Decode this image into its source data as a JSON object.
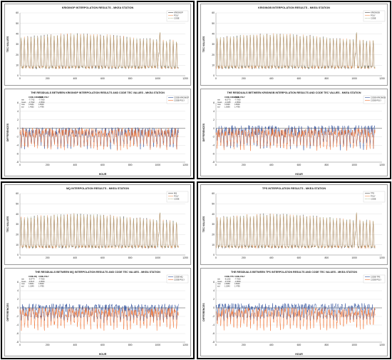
{
  "chart_data": [
    {
      "type": "line",
      "title": "KRIGINGP INTERPOLATION RESULTS - MKEA STATION",
      "xlabel": "",
      "ylabel": "TEC VALUES",
      "xlim": [
        0,
        1200
      ],
      "ylim": [
        0,
        60
      ],
      "xticks": [
        "0",
        "200",
        "400",
        "600",
        "800",
        "1000",
        "1200"
      ],
      "yticks": [
        "0",
        "10",
        "20",
        "30",
        "40",
        "50",
        "60"
      ],
      "legend_position": "top-right",
      "series": [
        {
          "name": "KRIGINGP",
          "color": "#4d4d4d",
          "dash": "solid",
          "period_hours": 24,
          "baseline": 8,
          "peak": 36,
          "noise": 3,
          "seed": 11
        },
        {
          "name": "POLY",
          "color": "#f0945a",
          "dash": "solid",
          "period_hours": 24,
          "baseline": 8,
          "peak": 36,
          "noise": 3,
          "seed": 12
        },
        {
          "name": "CODE",
          "color": "#9aaa7a",
          "dash": "dashed",
          "period_hours": 24,
          "baseline": 8,
          "peak": 36,
          "noise": 2,
          "seed": 13
        }
      ]
    },
    {
      "type": "line",
      "title": "KRIGINGB INTERPOLATION RESULTS - MKEA STATION",
      "xlabel": "",
      "ylabel": "TEC VALUES",
      "xlim": [
        0,
        1200
      ],
      "ylim": [
        0,
        60
      ],
      "xticks": [
        "0",
        "200",
        "400",
        "600",
        "800",
        "1000",
        "1200"
      ],
      "yticks": [
        "0",
        "10",
        "20",
        "30",
        "40",
        "50",
        "60"
      ],
      "legend_position": "top-right",
      "series": [
        {
          "name": "KRIGINGB",
          "color": "#4d4d4d",
          "dash": "solid",
          "period_hours": 24,
          "baseline": 8,
          "peak": 36,
          "noise": 3,
          "seed": 21
        },
        {
          "name": "POLY",
          "color": "#f0945a",
          "dash": "solid",
          "period_hours": 24,
          "baseline": 8,
          "peak": 36,
          "noise": 3,
          "seed": 22
        },
        {
          "name": "CODE",
          "color": "#9aaa7a",
          "dash": "dashed",
          "period_hours": 24,
          "baseline": 8,
          "peak": 36,
          "noise": 2,
          "seed": 23
        }
      ]
    },
    {
      "type": "line",
      "title": "THE RESIDUALS BETWEEN KRIGINGP INTERPOLATION RESULTS AND CODE TEC VALUES - MKEA STATION",
      "xlabel": "HOUR",
      "ylabel": "DIFFERENCES",
      "xlim": [
        0,
        1200
      ],
      "ylim": [
        -8,
        6
      ],
      "xticks": [
        "0",
        "200",
        "400",
        "600",
        "800",
        "1000",
        "1200"
      ],
      "yticks": [
        "-8",
        "-6",
        "-4",
        "-2",
        "0",
        "2",
        "4",
        "6"
      ],
      "legend_position": "top-right",
      "stats": {
        "header": [
          "",
          "CODE-KRIGINGP",
          "CODE-POLY"
        ],
        "rows": [
          [
            "min",
            "-7.7762",
            "-7.7000"
          ],
          [
            "mean",
            "-1.7922",
            "-1.9694"
          ],
          [
            "max",
            "3.6431",
            "4.8000"
          ],
          [
            "std",
            "1.4052",
            "1.4795"
          ]
        ]
      },
      "series": [
        {
          "name": "CODE-KRIGINGP",
          "color": "#2e4f9c",
          "dash": "solid",
          "mean": -1.79,
          "amplitude": 2.2,
          "min": -7.78,
          "max": 3.64,
          "seed": 31
        },
        {
          "name": "CODE-POLY",
          "color": "#f07030",
          "dash": "solid",
          "mean": -1.97,
          "amplitude": 2.3,
          "min": -7.7,
          "max": 4.8,
          "seed": 32
        }
      ]
    },
    {
      "type": "line",
      "title": "THE RESIDUALS BETWEEN KRIGINGB INTERPOLATION RESULTS AND CODE TEC VALUES - MKEA STATION",
      "xlabel": "HOUR",
      "ylabel": "DIFFERENCES",
      "xlim": [
        0,
        1200
      ],
      "ylim": [
        -8,
        6
      ],
      "xticks": [
        "0",
        "200",
        "400",
        "600",
        "800",
        "1000",
        "1200"
      ],
      "yticks": [
        "-8",
        "-6",
        "-4",
        "-2",
        "0",
        "2",
        "4",
        "6"
      ],
      "legend_position": "top-right",
      "stats": {
        "header": [
          "",
          "CODE-KRIGINGB",
          "CODE-POLY"
        ],
        "rows": [
          [
            "min",
            "-8.3770",
            "-7.7000"
          ],
          [
            "mean",
            "-1.4445",
            "-1.9694"
          ],
          [
            "max",
            "3.6326",
            "4.8000"
          ],
          [
            "std",
            "1.5695",
            "1.4795"
          ]
        ]
      },
      "series": [
        {
          "name": "CODE-KRIGINGB",
          "color": "#2e4f9c",
          "dash": "solid",
          "mean": -1.44,
          "amplitude": 2.5,
          "min": -8.38,
          "max": 3.63,
          "seed": 41
        },
        {
          "name": "CODE-POLY",
          "color": "#f07030",
          "dash": "solid",
          "mean": -1.97,
          "amplitude": 2.3,
          "min": -7.7,
          "max": 4.8,
          "seed": 42
        }
      ]
    },
    {
      "type": "line",
      "title": "MQ INTERPOLATION RESULTS - MKEA STATION",
      "xlabel": "",
      "ylabel": "TEC VALUES",
      "xlim": [
        0,
        1200
      ],
      "ylim": [
        0,
        60
      ],
      "xticks": [
        "0",
        "200",
        "400",
        "600",
        "800",
        "1000",
        "1200"
      ],
      "yticks": [
        "0",
        "10",
        "20",
        "30",
        "40",
        "50",
        "60"
      ],
      "legend_position": "top-right",
      "series": [
        {
          "name": "MQ",
          "color": "#4d4d4d",
          "dash": "solid",
          "period_hours": 24,
          "baseline": 8,
          "peak": 36,
          "noise": 3,
          "seed": 51
        },
        {
          "name": "POLY",
          "color": "#f0945a",
          "dash": "solid",
          "period_hours": 24,
          "baseline": 8,
          "peak": 36,
          "noise": 3,
          "seed": 52
        },
        {
          "name": "CODE",
          "color": "#9aaa7a",
          "dash": "dashed",
          "period_hours": 24,
          "baseline": 8,
          "peak": 36,
          "noise": 2,
          "seed": 53
        }
      ]
    },
    {
      "type": "line",
      "title": "TPS INTERPOLATION RESULTS - MKEA STATION",
      "xlabel": "",
      "ylabel": "TEC VALUES",
      "xlim": [
        0,
        1200
      ],
      "ylim": [
        0,
        60
      ],
      "xticks": [
        "0",
        "200",
        "400",
        "600",
        "800",
        "1000",
        "1200"
      ],
      "yticks": [
        "0",
        "10",
        "20",
        "30",
        "40",
        "50",
        "60"
      ],
      "legend_position": "top-right",
      "series": [
        {
          "name": "TPS",
          "color": "#4d4d4d",
          "dash": "solid",
          "period_hours": 24,
          "baseline": 8,
          "peak": 36,
          "noise": 3,
          "seed": 61
        },
        {
          "name": "POLY",
          "color": "#f0945a",
          "dash": "solid",
          "period_hours": 24,
          "baseline": 8,
          "peak": 36,
          "noise": 3,
          "seed": 62
        },
        {
          "name": "CODE",
          "color": "#9aaa7a",
          "dash": "dashed",
          "period_hours": 24,
          "baseline": 8,
          "peak": 36,
          "noise": 2,
          "seed": 63
        }
      ]
    },
    {
      "type": "line",
      "title": "THE RESIDUALS BETWEEN MQ INTERPOLATION RESULTS AND CODE TEC VALUES - MKEA STATION",
      "xlabel": "HOUR",
      "ylabel": "DIFFERENCES",
      "xlim": [
        0,
        1200
      ],
      "ylim": [
        -8,
        6
      ],
      "xticks": [
        "0",
        "200",
        "400",
        "600",
        "800",
        "1000",
        "1200"
      ],
      "yticks": [
        "-8",
        "-6",
        "-4",
        "-2",
        "0",
        "2",
        "4",
        "6"
      ],
      "legend_position": "top-right",
      "stats": {
        "header": [
          "",
          "CODE-MQ",
          "CODE-POLY"
        ],
        "rows": [
          [
            "min",
            "-6.9774",
            "-7.7000"
          ],
          [
            "mean",
            "-0.9117",
            "-1.9694"
          ],
          [
            "max",
            "3.8041",
            "4.8000"
          ],
          [
            "std",
            "1.3249",
            "1.4795"
          ]
        ]
      },
      "series": [
        {
          "name": "CODE-MQ",
          "color": "#2e4f9c",
          "dash": "solid",
          "mean": -0.91,
          "amplitude": 1.9,
          "min": -6.98,
          "max": 3.8,
          "seed": 71
        },
        {
          "name": "CODE-POLY",
          "color": "#f07030",
          "dash": "solid",
          "mean": -1.97,
          "amplitude": 2.3,
          "min": -7.7,
          "max": 4.8,
          "seed": 72
        }
      ]
    },
    {
      "type": "line",
      "title": "THE RESIDUALS BETWEEN TPS INTERPOLATION RESULTS AND CODE TEC VALUES - MKEA STATION",
      "xlabel": "HOUR",
      "ylabel": "DIFFERENCES",
      "xlim": [
        0,
        1200
      ],
      "ylim": [
        -8,
        6
      ],
      "xticks": [
        "0",
        "200",
        "400",
        "600",
        "800",
        "1000",
        "1200"
      ],
      "yticks": [
        "-8",
        "-6",
        "-4",
        "-2",
        "0",
        "2",
        "4",
        "6"
      ],
      "legend_position": "top-right",
      "stats": {
        "header": [
          "",
          "CODE-TPS",
          "CODE-POLY"
        ],
        "rows": [
          [
            "min",
            "-6.1252",
            "-7.7000"
          ],
          [
            "mean",
            "-0.7232",
            "-1.9694"
          ],
          [
            "max",
            "2.9669",
            "4.8000"
          ],
          [
            "std",
            "1.2540",
            "1.4795"
          ]
        ]
      },
      "series": [
        {
          "name": "CODE-TPS",
          "color": "#2e4f9c",
          "dash": "solid",
          "mean": -0.72,
          "amplitude": 1.8,
          "min": -6.13,
          "max": 2.97,
          "seed": 81
        },
        {
          "name": "CODE-POLY",
          "color": "#f07030",
          "dash": "solid",
          "mean": -1.97,
          "amplitude": 2.3,
          "min": -7.7,
          "max": 4.8,
          "seed": 82
        }
      ]
    }
  ]
}
